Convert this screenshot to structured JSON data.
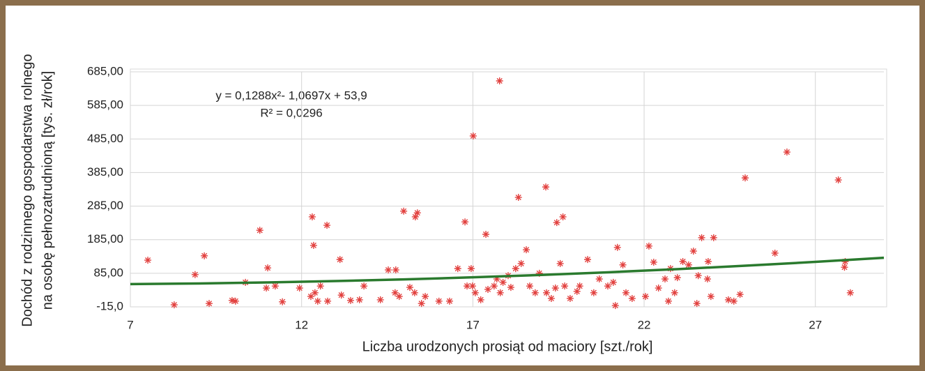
{
  "chart_data": {
    "type": "scatter",
    "xlabel": "Liczba urodzonych prosiąt od maciory [szt./rok]",
    "ylabel": [
      "Dochód z rodzinnego gospodarstwa rolnego",
      "na osobę pełnozatrudnioną [tys. zł/rok]"
    ],
    "annotations": [
      "y = 0,1288x²- 1,0697x + 53,9",
      "R² = 0,0296"
    ],
    "xlim": [
      7,
      29
    ],
    "xticks": [
      7,
      12,
      17,
      22,
      27
    ],
    "ylim": [
      -15,
      685
    ],
    "yticks": [
      {
        "value": -15,
        "label": "-15,0"
      },
      {
        "value": 85,
        "label": "85,00"
      },
      {
        "value": 185,
        "label": "185,00"
      },
      {
        "value": 285,
        "label": "285,00"
      },
      {
        "value": 385,
        "label": "385,00"
      },
      {
        "value": 485,
        "label": "485,00"
      },
      {
        "value": 585,
        "label": "585,00"
      },
      {
        "value": 685,
        "label": "685,00"
      }
    ],
    "grid": true,
    "series": [
      {
        "color": "#e2413f",
        "x": [
          7.51,
          8.28,
          8.89,
          9.16,
          9.3,
          9.97,
          10.07,
          10.36,
          10.78,
          10.97,
          11.01,
          11.23,
          11.44,
          11.94,
          12.31,
          12.35,
          12.39,
          12.27,
          12.47,
          12.55,
          12.76,
          12.74,
          13.12,
          13.16,
          13.43,
          13.69,
          13.82,
          14.3,
          14.53,
          14.75,
          14.73,
          14.85,
          14.98,
          15.16,
          15.3,
          15.32,
          15.38,
          15.5,
          15.61,
          16.01,
          16.32,
          16.56,
          16.77,
          16.83,
          16.95,
          16.99,
          17.01,
          17.07,
          17.23,
          17.38,
          17.44,
          17.62,
          17.7,
          17.78,
          17.8,
          17.88,
          18.03,
          18.11,
          18.25,
          18.33,
          18.41,
          18.56,
          18.66,
          18.82,
          18.94,
          19.13,
          19.15,
          19.29,
          19.41,
          19.45,
          19.55,
          19.63,
          19.68,
          19.84,
          20.04,
          20.12,
          20.35,
          20.53,
          20.69,
          20.94,
          21.1,
          21.16,
          21.22,
          21.38,
          21.47,
          21.65,
          22.04,
          22.14,
          22.28,
          22.42,
          22.61,
          22.71,
          22.77,
          22.89,
          22.97,
          23.13,
          23.3,
          23.44,
          23.54,
          23.58,
          23.68,
          23.85,
          23.87,
          23.95,
          24.03,
          24.46,
          24.62,
          24.8,
          24.95,
          25.82,
          26.17,
          27.67,
          27.85,
          27.87,
          28.02
        ],
        "values": [
          124,
          -9,
          81,
          137,
          -5,
          4,
          2,
          58,
          213,
          41,
          101,
          47,
          0,
          41,
          253,
          168,
          27,
          16,
          2,
          47,
          2,
          228,
          126,
          20,
          4,
          6,
          47,
          6,
          95,
          95,
          27,
          16,
          270,
          43,
          27,
          253,
          265,
          -5,
          16,
          2,
          2,
          99,
          238,
          47,
          99,
          47,
          494,
          27,
          6,
          201,
          37,
          47,
          68,
          658,
          27,
          58,
          78,
          43,
          99,
          311,
          114,
          155,
          47,
          27,
          85,
          342,
          27,
          10,
          41,
          236,
          114,
          253,
          47,
          10,
          31,
          47,
          126,
          27,
          68,
          47,
          58,
          -11,
          162,
          110,
          27,
          10,
          16,
          166,
          118,
          41,
          68,
          2,
          99,
          27,
          72,
          120,
          110,
          151,
          -5,
          78,
          191,
          68,
          120,
          16,
          191,
          6,
          2,
          22,
          369,
          145,
          446,
          363,
          103,
          120,
          27
        ]
      }
    ],
    "trendline": {
      "color": "#2a7a2e",
      "x": [
        7,
        9,
        11,
        13,
        15,
        17,
        19,
        21,
        23,
        25,
        27,
        29
      ],
      "values": [
        52.7,
        54.7,
        57.7,
        61.8,
        66.8,
        72.9,
        80.1,
        88.2,
        97.4,
        107.7,
        118.9,
        131.2
      ]
    }
  }
}
